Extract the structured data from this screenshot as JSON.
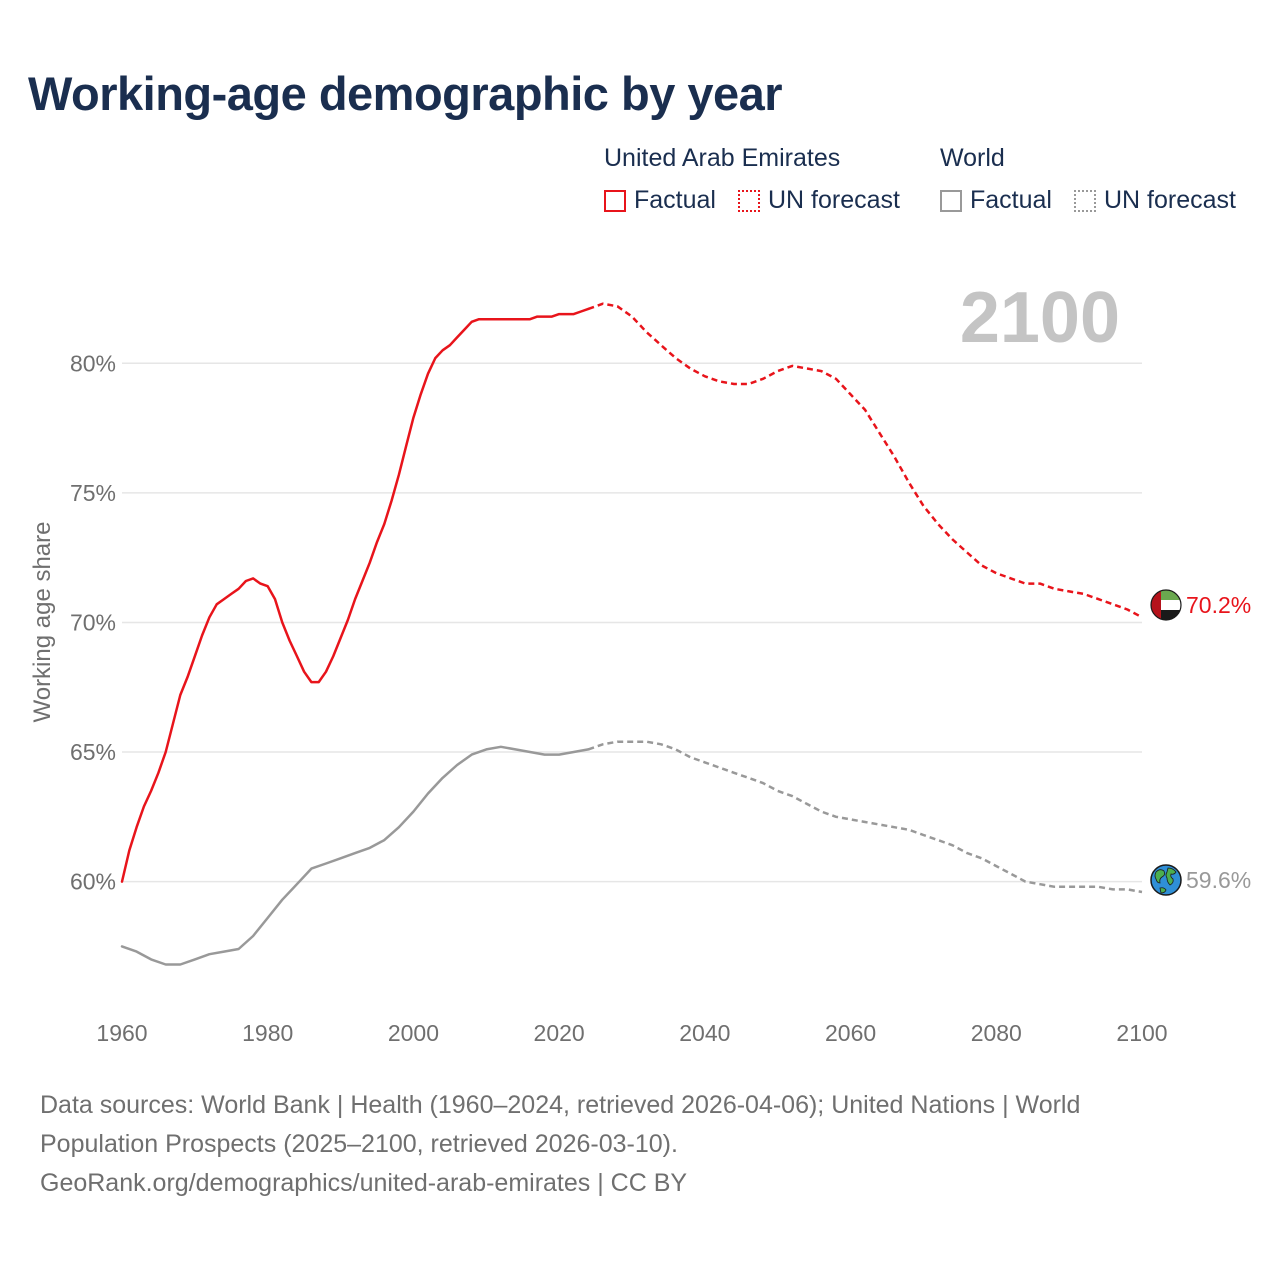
{
  "title": "Working-age demographic by year",
  "legend": {
    "groups": [
      {
        "name": "United Arab Emirates",
        "color": "#e8141b",
        "items": [
          {
            "label": "Factual",
            "style": "solid"
          },
          {
            "label": "UN forecast",
            "style": "dotted"
          }
        ]
      },
      {
        "name": "World",
        "color": "#999999",
        "items": [
          {
            "label": "Factual",
            "style": "solid"
          },
          {
            "label": "UN forecast",
            "style": "dotted"
          }
        ]
      }
    ]
  },
  "year_overlay": "2100",
  "chart_data": {
    "type": "line",
    "xlabel": "",
    "ylabel": "Working age share",
    "xlim": [
      1960,
      2100
    ],
    "ylim": [
      55.2,
      83.6
    ],
    "x_ticks": [
      1960,
      1980,
      2000,
      2020,
      2040,
      2060,
      2080,
      2100
    ],
    "x_tick_labels": [
      "1960",
      "1980",
      "2000",
      "2020",
      "2040",
      "2060",
      "2080",
      "2100"
    ],
    "y_ticks": [
      60,
      65,
      70,
      75,
      80
    ],
    "y_tick_labels": [
      "60%",
      "65%",
      "70%",
      "75%",
      "80%"
    ],
    "grid": true,
    "series": [
      {
        "name": "United Arab Emirates",
        "color": "#e8141b",
        "end_label": "70.2%",
        "end_marker": "uae-flag-icon",
        "factual": {
          "x": [
            1960,
            1961,
            1962,
            1963,
            1964,
            1965,
            1966,
            1967,
            1968,
            1969,
            1970,
            1971,
            1972,
            1973,
            1974,
            1975,
            1976,
            1977,
            1978,
            1979,
            1980,
            1981,
            1982,
            1983,
            1984,
            1985,
            1986,
            1987,
            1988,
            1989,
            1990,
            1991,
            1992,
            1993,
            1994,
            1995,
            1996,
            1997,
            1998,
            1999,
            2000,
            2001,
            2002,
            2003,
            2004,
            2005,
            2006,
            2007,
            2008,
            2009,
            2010,
            2011,
            2012,
            2013,
            2014,
            2015,
            2016,
            2017,
            2018,
            2019,
            2020,
            2021,
            2022,
            2023,
            2024
          ],
          "y": [
            60.0,
            61.2,
            62.1,
            62.9,
            63.5,
            64.2,
            65.0,
            66.1,
            67.2,
            67.9,
            68.7,
            69.5,
            70.2,
            70.7,
            70.9,
            71.1,
            71.3,
            71.6,
            71.7,
            71.5,
            71.4,
            70.9,
            70.0,
            69.3,
            68.7,
            68.1,
            67.7,
            67.7,
            68.1,
            68.7,
            69.4,
            70.1,
            70.9,
            71.6,
            72.3,
            73.1,
            73.8,
            74.7,
            75.7,
            76.8,
            77.9,
            78.8,
            79.6,
            80.2,
            80.5,
            80.7,
            81.0,
            81.3,
            81.6,
            81.7,
            81.7,
            81.7,
            81.7,
            81.7,
            81.7,
            81.7,
            81.7,
            81.8,
            81.8,
            81.8,
            81.9,
            81.9,
            81.9,
            82.0,
            82.1
          ]
        },
        "forecast": {
          "x": [
            2024,
            2026,
            2028,
            2030,
            2032,
            2034,
            2036,
            2038,
            2040,
            2042,
            2044,
            2046,
            2048,
            2050,
            2052,
            2054,
            2056,
            2058,
            2060,
            2062,
            2064,
            2066,
            2068,
            2070,
            2072,
            2074,
            2076,
            2078,
            2080,
            2082,
            2084,
            2086,
            2088,
            2090,
            2092,
            2094,
            2096,
            2098,
            2100
          ],
          "y": [
            82.1,
            82.3,
            82.2,
            81.8,
            81.2,
            80.7,
            80.2,
            79.8,
            79.5,
            79.3,
            79.2,
            79.2,
            79.4,
            79.7,
            79.9,
            79.8,
            79.7,
            79.4,
            78.8,
            78.2,
            77.3,
            76.4,
            75.4,
            74.5,
            73.8,
            73.2,
            72.7,
            72.2,
            71.9,
            71.7,
            71.5,
            71.5,
            71.3,
            71.2,
            71.1,
            70.9,
            70.7,
            70.5,
            70.2
          ]
        }
      },
      {
        "name": "World",
        "color": "#999999",
        "end_label": "59.6%",
        "end_marker": "globe-icon",
        "factual": {
          "x": [
            1960,
            1962,
            1964,
            1966,
            1968,
            1970,
            1972,
            1974,
            1976,
            1978,
            1980,
            1982,
            1984,
            1986,
            1988,
            1990,
            1992,
            1994,
            1996,
            1998,
            2000,
            2002,
            2004,
            2006,
            2008,
            2010,
            2012,
            2014,
            2016,
            2018,
            2020,
            2022,
            2024
          ],
          "y": [
            57.5,
            57.3,
            57.0,
            56.8,
            56.8,
            57.0,
            57.2,
            57.3,
            57.4,
            57.9,
            58.6,
            59.3,
            59.9,
            60.5,
            60.7,
            60.9,
            61.1,
            61.3,
            61.6,
            62.1,
            62.7,
            63.4,
            64.0,
            64.5,
            64.9,
            65.1,
            65.2,
            65.1,
            65.0,
            64.9,
            64.9,
            65.0,
            65.1
          ]
        },
        "forecast": {
          "x": [
            2024,
            2026,
            2028,
            2030,
            2032,
            2034,
            2036,
            2038,
            2040,
            2042,
            2044,
            2046,
            2048,
            2050,
            2052,
            2054,
            2056,
            2058,
            2060,
            2062,
            2064,
            2066,
            2068,
            2070,
            2072,
            2074,
            2076,
            2078,
            2080,
            2082,
            2084,
            2086,
            2088,
            2090,
            2092,
            2094,
            2096,
            2098,
            2100
          ],
          "y": [
            65.1,
            65.3,
            65.4,
            65.4,
            65.4,
            65.3,
            65.1,
            64.8,
            64.6,
            64.4,
            64.2,
            64.0,
            63.8,
            63.5,
            63.3,
            63.0,
            62.7,
            62.5,
            62.4,
            62.3,
            62.2,
            62.1,
            62.0,
            61.8,
            61.6,
            61.4,
            61.1,
            60.9,
            60.6,
            60.3,
            60.0,
            59.9,
            59.8,
            59.8,
            59.8,
            59.8,
            59.7,
            59.7,
            59.6
          ]
        }
      }
    ]
  },
  "sources": {
    "line1": "Data sources: World Bank | Health (1960–2024, retrieved 2026-04-06); United Nations | World",
    "line2": "Population Prospects (2025–2100, retrieved 2026-03-10).",
    "line3": "GeoRank.org/demographics/united-arab-emirates | CC BY"
  }
}
